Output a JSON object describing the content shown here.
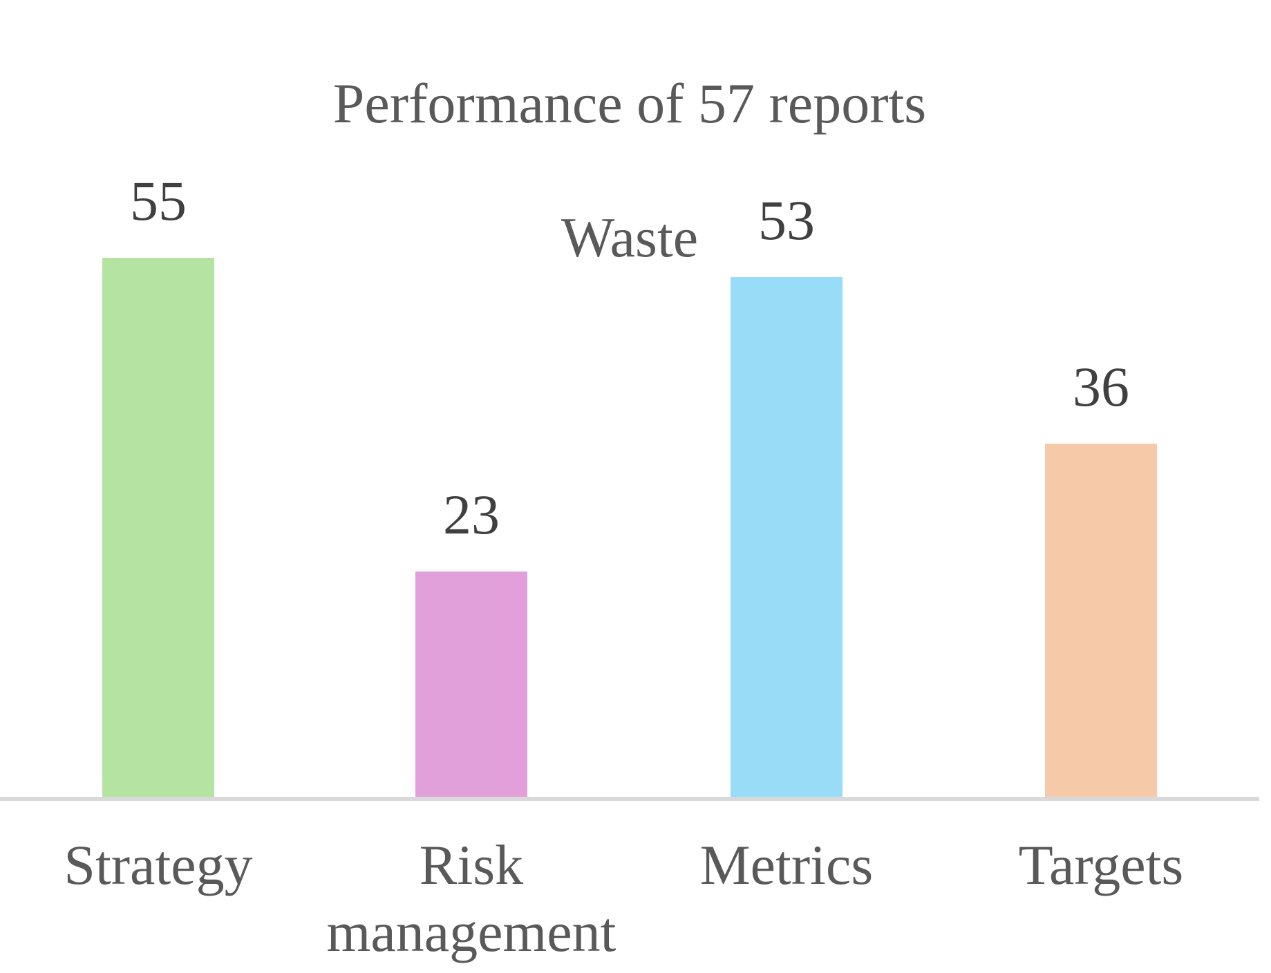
{
  "chart_data": {
    "type": "bar",
    "title": "Performance of 57 reports",
    "subtitle": "Waste",
    "categories": [
      "Strategy",
      "Risk management",
      "Metrics",
      "Targets"
    ],
    "values": [
      55,
      23,
      53,
      36
    ],
    "bar_colors": [
      "#B4E3A2",
      "#E2A0DB",
      "#99DCF8",
      "#F6C9A9"
    ],
    "xlabel": "",
    "ylabel": "",
    "ylim": [
      0,
      55
    ],
    "y_axis_visible": false,
    "gridlines": false,
    "legend": false,
    "data_labels": "outside-end"
  },
  "colors": {
    "background": "#FFFFFF",
    "axis_line": "#D9D9D9",
    "title_text": "#595959",
    "category_text": "#595959",
    "value_text": "#404040"
  }
}
